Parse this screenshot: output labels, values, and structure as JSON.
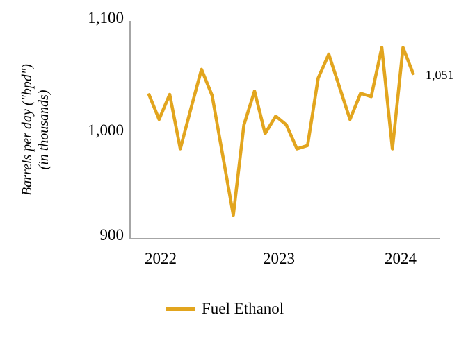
{
  "chart": {
    "y_axis_title_line1": "Barrels per day (\"bpd\")",
    "y_axis_title_line2": "(in thousands)",
    "y_tick_labels": [
      "1,100",
      "1,000",
      "900"
    ],
    "x_tick_labels": [
      "2022",
      "2023",
      "2024"
    ],
    "end_label": "1,051",
    "legend_label": "Fuel Ethanol",
    "colors": {
      "line": "#e2a51e",
      "axis": "#a6a6a6",
      "text": "#000000"
    }
  },
  "chart_data": {
    "type": "line",
    "title": "",
    "xlabel": "",
    "ylabel": "Barrels per day (\"bpd\") (in thousands)",
    "ylim": [
      900,
      1100
    ],
    "y_ticks": [
      900,
      1000,
      1100
    ],
    "x_tick_labels": [
      "2022",
      "2023",
      "2024"
    ],
    "grid": false,
    "legend_position": "bottom",
    "x": [
      "Jan 2022",
      "Feb 2022",
      "Mar 2022",
      "Apr 2022",
      "May 2022",
      "Jun 2022",
      "Jul 2022",
      "Aug 2022",
      "Sep 2022",
      "Oct 2022",
      "Nov 2022",
      "Dec 2022",
      "Jan 2023",
      "Feb 2023",
      "Mar 2023",
      "Apr 2023",
      "May 2023",
      "Jun 2023",
      "Jul 2023",
      "Aug 2023",
      "Sep 2023",
      "Oct 2023",
      "Nov 2023",
      "Dec 2023",
      "Jan 2024",
      "Feb 2024"
    ],
    "series": [
      {
        "name": "Fuel Ethanol",
        "color": "#e2a51e",
        "values": [
          1034,
          1010,
          1033,
          983,
          1020,
          1056,
          1032,
          977,
          922,
          1005,
          1036,
          997,
          1013,
          1005,
          983,
          986,
          1048,
          1070,
          1040,
          1010,
          1034,
          1031,
          1076,
          983,
          1076,
          1051
        ]
      }
    ],
    "annotation": {
      "text": "1,051",
      "series": "Fuel Ethanol",
      "point": "Feb 2024",
      "value": 1051
    }
  }
}
